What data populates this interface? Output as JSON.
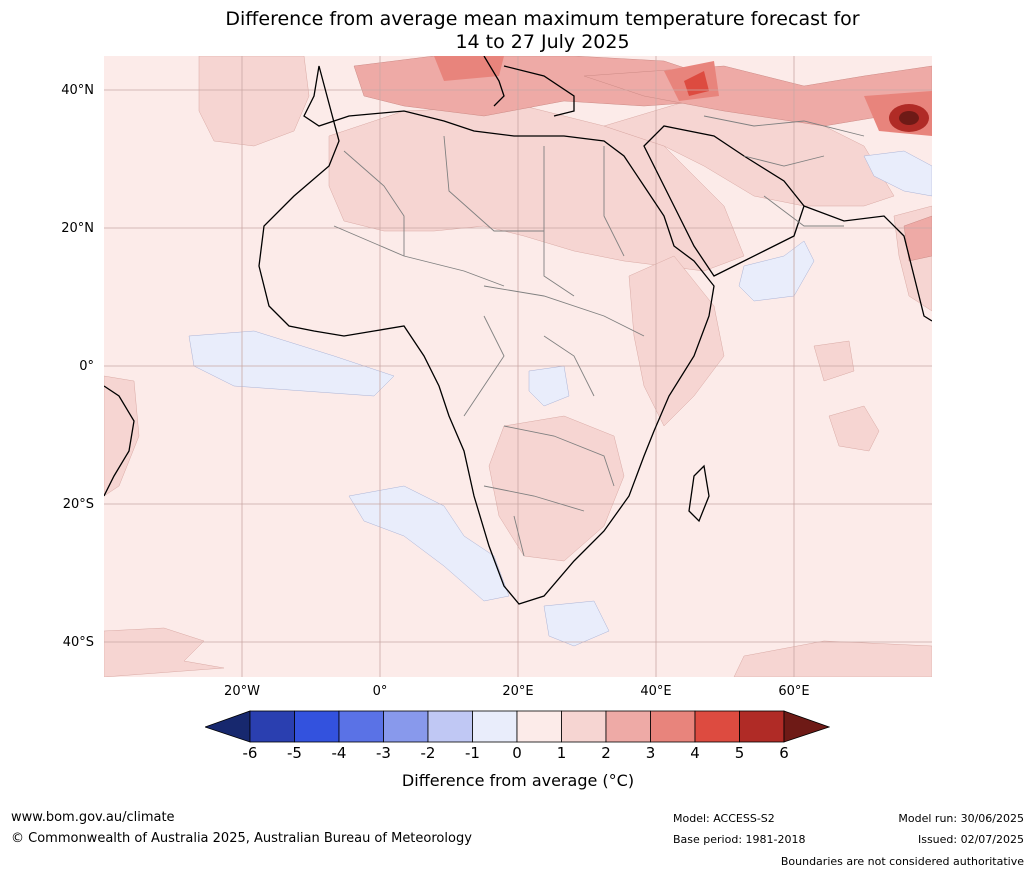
{
  "title": {
    "line1": "Difference from average mean maximum temperature forecast for",
    "line2": "14 to 27 July 2025"
  },
  "map": {
    "y_labels": [
      "40°N",
      "20°N",
      "0°",
      "20°S",
      "40°S"
    ],
    "x_labels": [
      "20°W",
      "0°",
      "20°E",
      "40°E",
      "60°E"
    ],
    "base_color": "#fcebe9"
  },
  "legend": {
    "title": "Difference from average (°C)",
    "ticks": [
      "-6",
      "-5",
      "-4",
      "-3",
      "-2",
      "-1",
      "0",
      "1",
      "2",
      "3",
      "4",
      "5",
      "6"
    ],
    "colors": [
      "#17286e",
      "#2a3fb0",
      "#3352de",
      "#5a72e6",
      "#8899ec",
      "#c0c8f4",
      "#e9edfb",
      "#fcebe9",
      "#f6d5d2",
      "#eeaaa6",
      "#e8847c",
      "#dd4b40",
      "#b02b26",
      "#6e1a16"
    ]
  },
  "footer": {
    "website": "www.bom.gov.au/climate",
    "copyright": "© Commonwealth of Australia 2025, Australian Bureau of Meteorology",
    "model": "Model: ACCESS-S2",
    "base_period": "Base period: 1981-2018",
    "model_run": "Model run: 30/06/2025",
    "issued": "Issued: 02/07/2025",
    "disclaimer": "Boundaries are not considered authoritative"
  }
}
